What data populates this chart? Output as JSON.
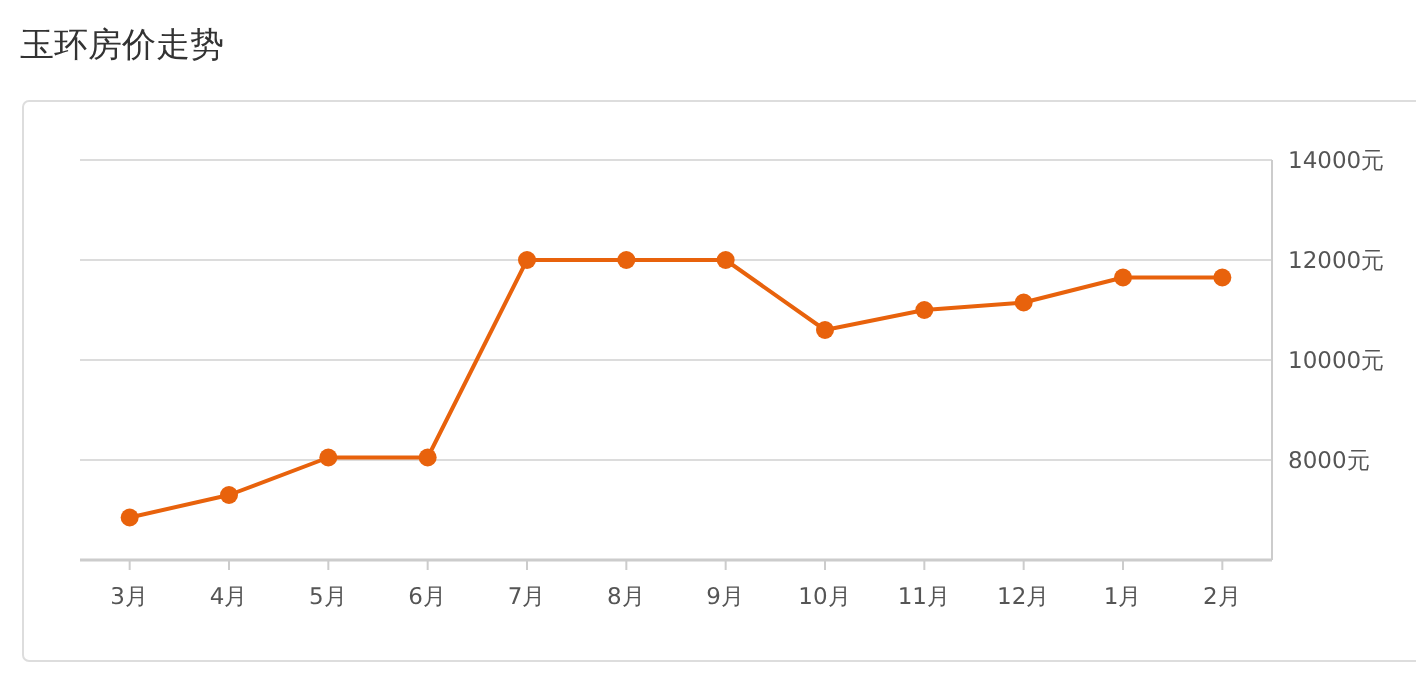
{
  "chart_data": {
    "type": "line",
    "title": "玉环房价走势",
    "categories": [
      "3月",
      "4月",
      "5月",
      "6月",
      "7月",
      "8月",
      "9月",
      "10月",
      "11月",
      "12月",
      "1月",
      "2月"
    ],
    "series": [
      {
        "color": "#e8620c",
        "values": [
          6850,
          7300,
          8050,
          8050,
          12000,
          12000,
          12000,
          10600,
          11000,
          11150,
          11650,
          11650
        ]
      }
    ],
    "ylim": [
      6000,
      14000
    ],
    "yticks": [
      {
        "value": 6000,
        "label": null
      },
      {
        "value": 8000,
        "label": "8000元"
      },
      {
        "value": 10000,
        "label": "10000元"
      },
      {
        "value": 12000,
        "label": "12000元"
      },
      {
        "value": 14000,
        "label": "14000元"
      }
    ],
    "grid": "y",
    "marker": "circle",
    "line_style": "solid"
  }
}
